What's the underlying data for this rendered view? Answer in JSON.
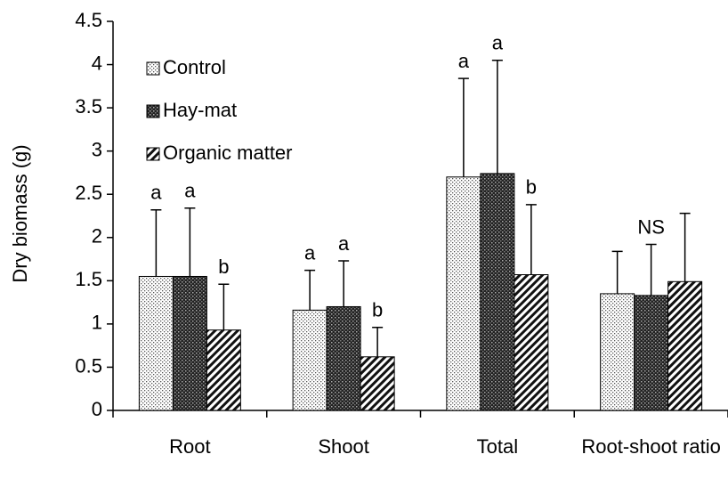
{
  "chart_data": {
    "type": "bar",
    "y_label": "Dry biomass (g)",
    "categories": [
      "Root",
      "Shoot",
      "Total",
      "Root-shoot ratio"
    ],
    "series": [
      {
        "name": "Control",
        "pattern": "dots",
        "color": "#000000",
        "values": [
          1.55,
          1.16,
          2.7,
          1.35
        ],
        "errors": [
          0.77,
          0.46,
          1.14,
          0.49
        ],
        "labels": [
          "a",
          "a",
          "a",
          null
        ]
      },
      {
        "name": "Hay-mat",
        "pattern": "checks",
        "color": "#000000",
        "values": [
          1.55,
          1.2,
          2.74,
          1.33
        ],
        "errors": [
          0.79,
          0.53,
          1.31,
          0.59
        ],
        "labels": [
          "a",
          "a",
          "a",
          "NS"
        ]
      },
      {
        "name": "Organic matter",
        "pattern": "stripes",
        "color": "#000000",
        "values": [
          0.93,
          0.62,
          1.57,
          1.49
        ],
        "errors": [
          0.53,
          0.34,
          0.81,
          0.79
        ],
        "labels": [
          "b",
          "b",
          "b",
          null
        ]
      }
    ],
    "ylim": [
      0,
      4.5
    ],
    "yticks": [
      0,
      0.5,
      1,
      1.5,
      2,
      2.5,
      3,
      3.5,
      4,
      4.5
    ],
    "grid": false,
    "legend": "upper left"
  }
}
